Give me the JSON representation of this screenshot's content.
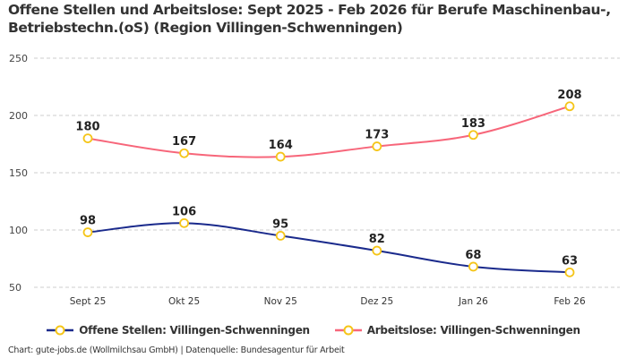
{
  "title": "Offene Stellen und Arbeitslose: Sept 2025 - Feb 2026 für Berufe Maschinenbau-, Betriebstechn.(oS) (Region Villingen-Schwenningen)",
  "source": "Chart: gute-jobs.de (Wollmilchsau GmbH) | Datenquelle: Bundesagentur für Arbeit",
  "colors": {
    "offene": "#1a2a8c",
    "arbeitslose": "#f7667a",
    "marker": "#f5c518",
    "grid": "#cccccc"
  },
  "chart_data": {
    "type": "line",
    "categories": [
      "Sept 25",
      "Okt 25",
      "Nov 25",
      "Dez 25",
      "Jan 26",
      "Feb 26"
    ],
    "yticks": [
      50,
      100,
      150,
      200,
      250
    ],
    "ylim": [
      50,
      250
    ],
    "grid": true,
    "legend": "bottom",
    "series": [
      {
        "name": "Offene Stellen: Villingen-Schwenningen",
        "values": [
          98,
          106,
          95,
          82,
          68,
          63
        ]
      },
      {
        "name": "Arbeitslose: Villingen-Schwenningen",
        "values": [
          180,
          167,
          164,
          173,
          183,
          208
        ]
      }
    ]
  }
}
